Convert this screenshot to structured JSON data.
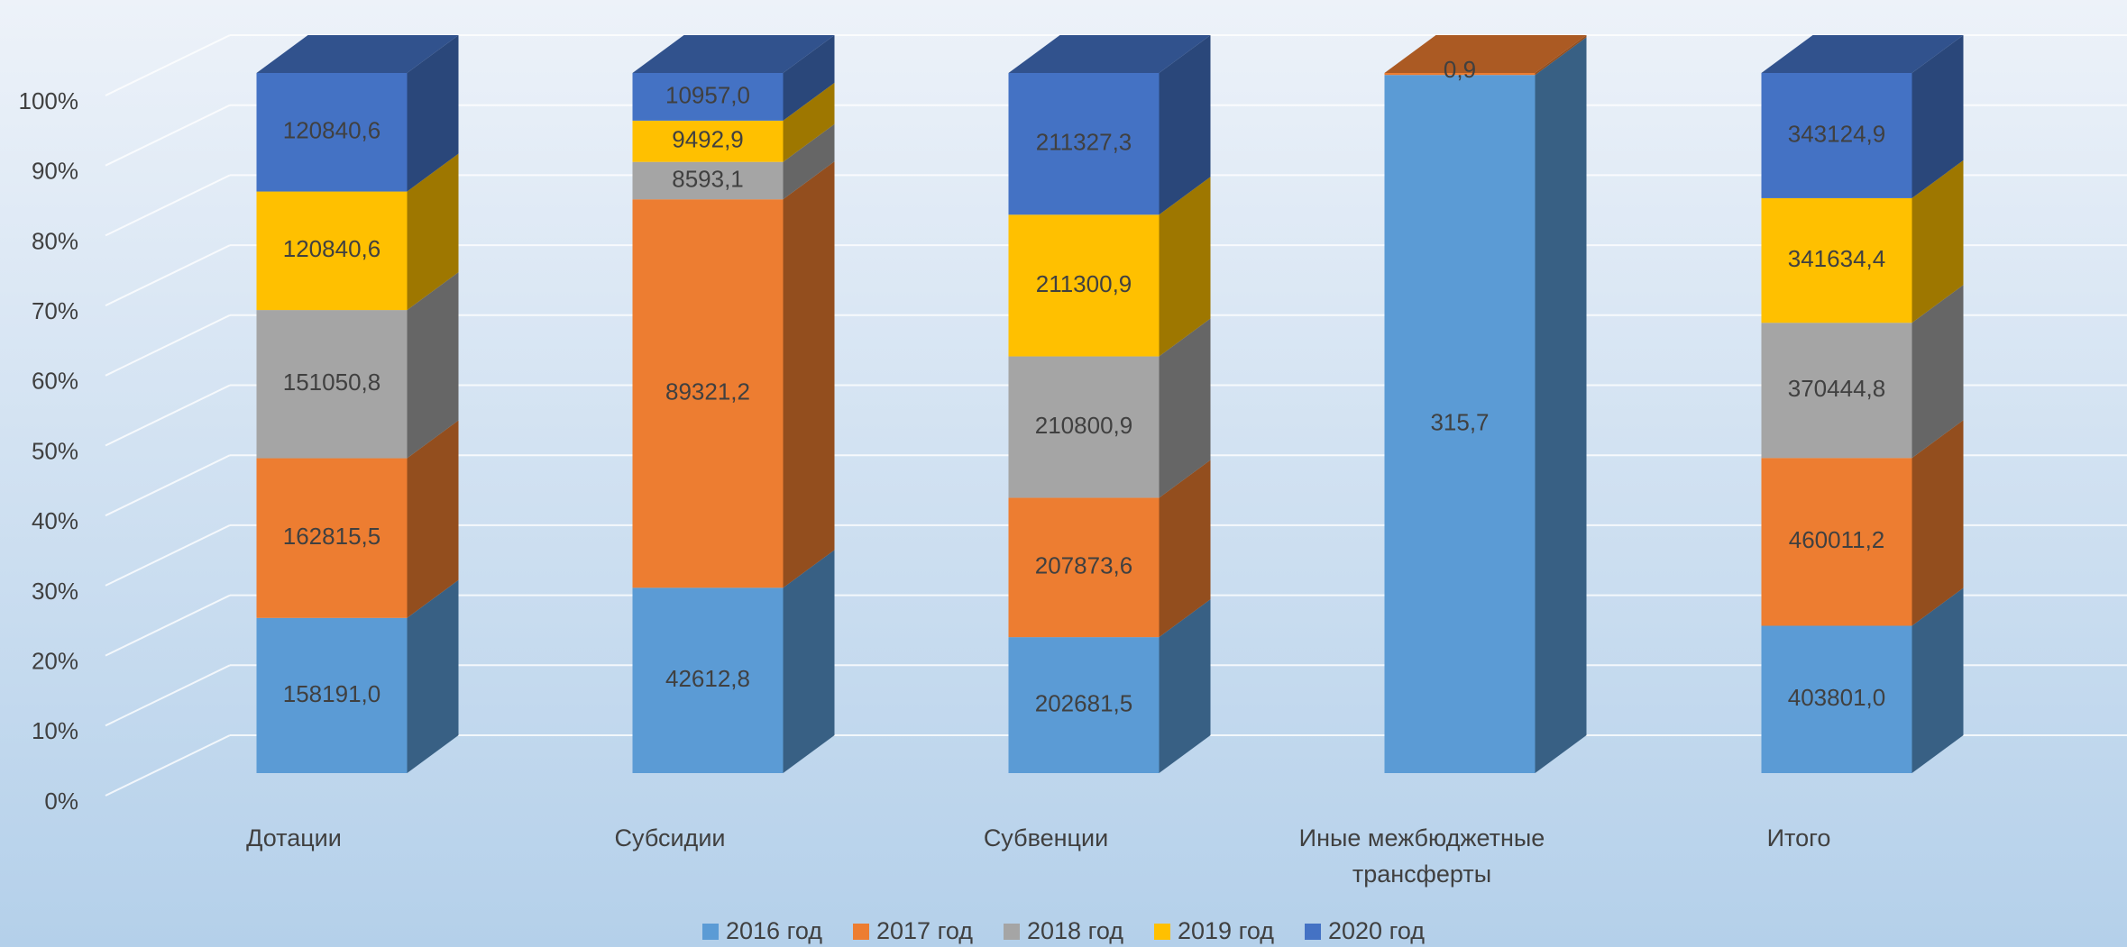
{
  "chart_data": {
    "type": "bar3d_stacked_percent",
    "categories": [
      "Дотации",
      "Субсидии",
      "Субвенции",
      "Иные межбюджетные трансферты",
      "Итого"
    ],
    "series": [
      {
        "name": "2016 год",
        "color": "#5b9bd5",
        "values": [
          158191.0,
          42612.8,
          202681.5,
          315.7,
          403801.0
        ],
        "value_labels": [
          "158191,0",
          "42612,8",
          "202681,5",
          "315,7",
          "403801,0"
        ]
      },
      {
        "name": "2017 год",
        "color": "#ed7d31",
        "values": [
          162815.5,
          89321.2,
          207873.6,
          0.9,
          460011.2
        ],
        "value_labels": [
          "162815,5",
          "89321,2",
          "207873,6",
          "0,9",
          "460011,2"
        ]
      },
      {
        "name": "2018 год",
        "color": "#a5a5a5",
        "values": [
          151050.8,
          8593.1,
          210800.9,
          null,
          370444.8
        ],
        "value_labels": [
          "151050,8",
          "8593,1",
          "210800,9",
          null,
          "370444,8"
        ]
      },
      {
        "name": "2019 год",
        "color": "#ffc000",
        "values": [
          120840.6,
          9492.9,
          211300.9,
          null,
          341634.4
        ],
        "value_labels": [
          "120840,6",
          "9492,9",
          "211300,9",
          null,
          "341634,4"
        ]
      },
      {
        "name": "2020 год",
        "color": "#4472c4",
        "values": [
          120840.6,
          10957.0,
          211327.3,
          null,
          343124.9
        ],
        "value_labels": [
          "120840,6",
          "10957,0",
          "211327,3",
          null,
          "343124,9"
        ]
      }
    ],
    "ylim": [
      0,
      100
    ],
    "yticks": [
      {
        "value": 0,
        "label": "0%"
      },
      {
        "value": 10,
        "label": "10%"
      },
      {
        "value": 20,
        "label": "20%"
      },
      {
        "value": 30,
        "label": "30%"
      },
      {
        "value": 40,
        "label": "40%"
      },
      {
        "value": 50,
        "label": "50%"
      },
      {
        "value": 60,
        "label": "60%"
      },
      {
        "value": 70,
        "label": "70%"
      },
      {
        "value": 80,
        "label": "80%"
      },
      {
        "value": 90,
        "label": "90%"
      },
      {
        "value": 100,
        "label": "100%"
      }
    ],
    "grid": true,
    "legend": "bottom"
  }
}
